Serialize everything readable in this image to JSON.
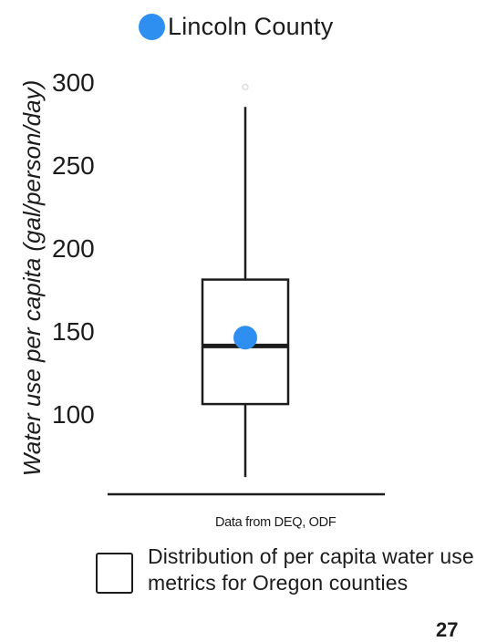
{
  "chart_data": {
    "type": "box",
    "ylabel": "Water use per capita (gal/person/day)",
    "yticks": [
      100,
      150,
      200,
      250,
      300
    ],
    "ylim": [
      50,
      300
    ],
    "grid": false,
    "box": {
      "whisker_low": 62,
      "q1": 106,
      "median": 141,
      "q3": 181,
      "whisker_high": 285,
      "outliers": [
        297
      ]
    },
    "point": {
      "name": "Lincoln County",
      "value": 146,
      "color": "#2f8ff0"
    },
    "legend": {
      "point_label": "Lincoln County",
      "box_label": "Distribution of per capita water use metrics for Oregon counties"
    },
    "source": "Data from DEQ, ODF"
  },
  "colors": {
    "point": "#2f8ff0",
    "box_fill": "#ffffff",
    "ink": "#1c1c1c"
  },
  "page_number": "27"
}
